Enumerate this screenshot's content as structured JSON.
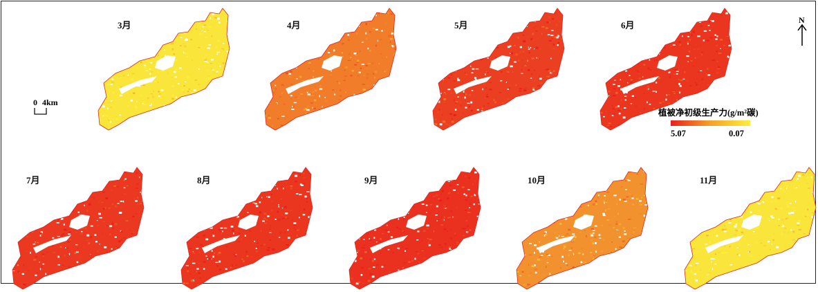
{
  "panels": [
    {
      "month": "3月",
      "intensity": 0.05
    },
    {
      "month": "4月",
      "intensity": 0.55
    },
    {
      "month": "5月",
      "intensity": 0.85
    },
    {
      "month": "6月",
      "intensity": 0.9
    },
    {
      "month": "7月",
      "intensity": 0.88
    },
    {
      "month": "8月",
      "intensity": 0.9
    },
    {
      "month": "9月",
      "intensity": 0.92
    },
    {
      "month": "10月",
      "intensity": 0.45
    },
    {
      "month": "11月",
      "intensity": 0.05
    }
  ],
  "scalebar": {
    "start": "0",
    "end": "4km"
  },
  "legend": {
    "title": "植被净初级生产力(g/m²碳)",
    "max_label": "5.07",
    "min_label": "0.07",
    "color_high": "#e8201c",
    "color_low": "#fbef3c"
  },
  "north_arrow": {
    "label": "N"
  }
}
